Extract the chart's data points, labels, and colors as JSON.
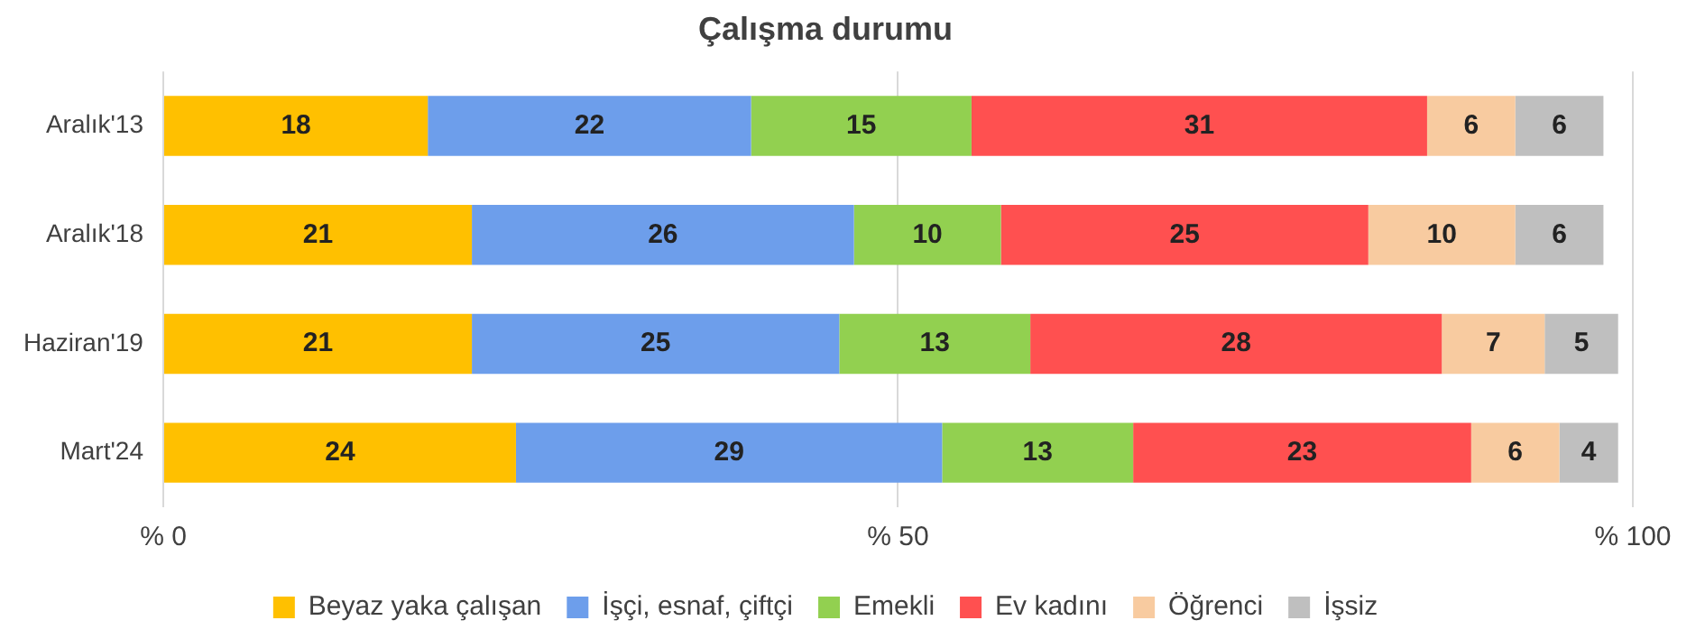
{
  "chart_data": {
    "type": "bar",
    "orientation": "horizontal",
    "stacked": true,
    "title": "Çalışma durumu",
    "categories": [
      "Aralık'13",
      "Aralık'18",
      "Haziran'19",
      "Mart'24"
    ],
    "series": [
      {
        "name": "Beyaz yaka çalışan",
        "color": "#ffc000",
        "values": [
          18,
          21,
          21,
          24
        ]
      },
      {
        "name": "İşçi, esnaf, çiftçi",
        "color": "#6d9eeb",
        "values": [
          22,
          26,
          25,
          29
        ]
      },
      {
        "name": "Emekli",
        "color": "#92d050",
        "values": [
          15,
          10,
          13,
          13
        ]
      },
      {
        "name": "Ev kadını",
        "color": "#ff5050",
        "values": [
          31,
          25,
          28,
          23
        ]
      },
      {
        "name": "Öğrenci",
        "color": "#f8cba0",
        "values": [
          6,
          10,
          7,
          6
        ]
      },
      {
        "name": "İşsiz",
        "color": "#bfbfbf",
        "values": [
          6,
          6,
          5,
          4
        ]
      }
    ],
    "xlim": [
      0,
      100
    ],
    "xticks": [
      {
        "value": 0,
        "label": "% 0"
      },
      {
        "value": 50,
        "label": "% 50"
      },
      {
        "value": 100,
        "label": "% 100"
      }
    ],
    "grid": "x",
    "legend": "bottom",
    "data_labels": true
  }
}
